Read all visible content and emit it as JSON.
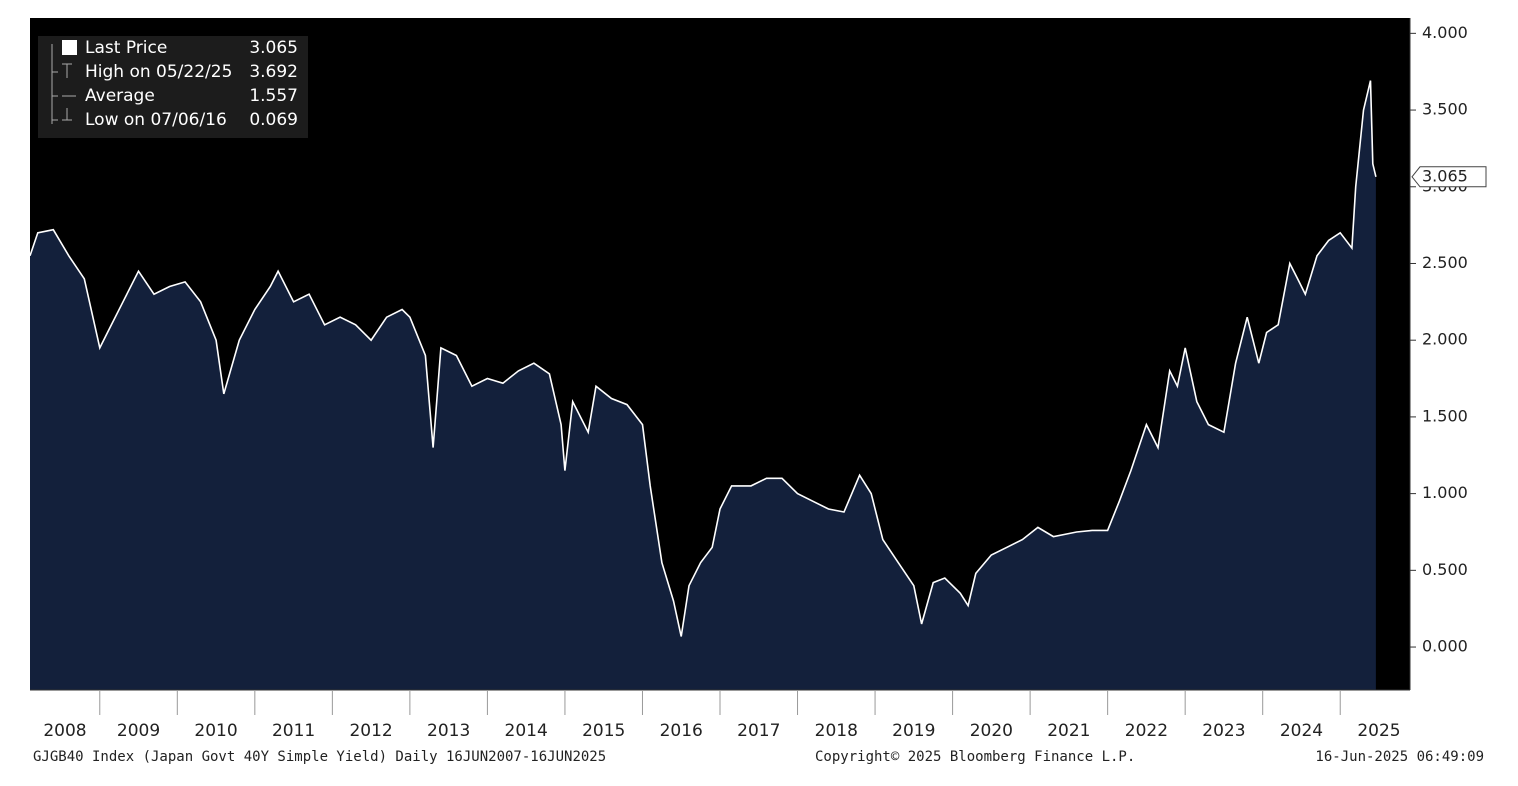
{
  "chart_data": {
    "type": "area",
    "x": [
      2008.1,
      2008.2,
      2008.4,
      2008.6,
      2008.8,
      2009.0,
      2009.1,
      2009.3,
      2009.5,
      2009.7,
      2009.9,
      2010.1,
      2010.3,
      2010.5,
      2010.6,
      2010.8,
      2011.0,
      2011.2,
      2011.3,
      2011.5,
      2011.7,
      2011.9,
      2012.1,
      2012.3,
      2012.5,
      2012.7,
      2012.9,
      2013.0,
      2013.2,
      2013.3,
      2013.4,
      2013.6,
      2013.8,
      2014.0,
      2014.2,
      2014.4,
      2014.6,
      2014.8,
      2014.95,
      2015.0,
      2015.1,
      2015.3,
      2015.4,
      2015.6,
      2015.8,
      2016.0,
      2016.1,
      2016.25,
      2016.4,
      2016.5,
      2016.6,
      2016.75,
      2016.9,
      2017.0,
      2017.15,
      2017.4,
      2017.6,
      2017.8,
      2018.0,
      2018.2,
      2018.4,
      2018.6,
      2018.8,
      2018.95,
      2019.1,
      2019.3,
      2019.5,
      2019.6,
      2019.75,
      2019.9,
      2020.1,
      2020.2,
      2020.3,
      2020.5,
      2020.7,
      2020.9,
      2021.1,
      2021.3,
      2021.6,
      2021.8,
      2022.0,
      2022.15,
      2022.3,
      2022.5,
      2022.65,
      2022.8,
      2022.9,
      2023.0,
      2023.15,
      2023.3,
      2023.5,
      2023.65,
      2023.8,
      2023.95,
      2024.05,
      2024.2,
      2024.35,
      2024.45,
      2024.55,
      2024.7,
      2024.85,
      2025.0,
      2025.15,
      2025.2,
      2025.3,
      2025.39,
      2025.42,
      2025.46
    ],
    "series": [
      {
        "name": "Last Price",
        "color": "#ffffff",
        "fill": "#13203b",
        "values": [
          2.55,
          2.7,
          2.72,
          2.55,
          2.4,
          1.95,
          2.05,
          2.25,
          2.45,
          2.3,
          2.35,
          2.38,
          2.25,
          2.0,
          1.65,
          2.0,
          2.2,
          2.35,
          2.45,
          2.25,
          2.3,
          2.1,
          2.15,
          2.1,
          2.0,
          2.15,
          2.2,
          2.15,
          1.9,
          1.3,
          1.95,
          1.9,
          1.7,
          1.75,
          1.72,
          1.8,
          1.85,
          1.78,
          1.45,
          1.15,
          1.6,
          1.4,
          1.7,
          1.62,
          1.58,
          1.45,
          1.05,
          0.55,
          0.3,
          0.069,
          0.4,
          0.55,
          0.65,
          0.9,
          1.05,
          1.05,
          1.1,
          1.1,
          1.0,
          0.95,
          0.9,
          0.88,
          1.12,
          1.0,
          0.7,
          0.55,
          0.4,
          0.15,
          0.42,
          0.45,
          0.35,
          0.27,
          0.48,
          0.6,
          0.65,
          0.7,
          0.78,
          0.72,
          0.75,
          0.76,
          0.76,
          0.95,
          1.15,
          1.45,
          1.3,
          1.8,
          1.7,
          1.95,
          1.6,
          1.45,
          1.4,
          1.85,
          2.15,
          1.85,
          2.05,
          2.1,
          2.5,
          2.4,
          2.3,
          2.55,
          2.65,
          2.7,
          2.6,
          3.0,
          3.5,
          3.692,
          3.15,
          3.065
        ]
      }
    ],
    "xlim": [
      2008.1,
      2025.9
    ],
    "xticks": [
      2008,
      2009,
      2010,
      2011,
      2012,
      2013,
      2014,
      2015,
      2016,
      2017,
      2018,
      2019,
      2020,
      2021,
      2022,
      2023,
      2024,
      2025
    ],
    "ylim": [
      -0.28,
      4.1
    ],
    "yticks": [
      {
        "value": 0,
        "label": "0.000"
      },
      {
        "value": 0.5,
        "label": "0.500"
      },
      {
        "value": 1,
        "label": "1.000"
      },
      {
        "value": 1.5,
        "label": "1.500"
      },
      {
        "value": 2,
        "label": "2.000"
      },
      {
        "value": 2.5,
        "label": "2.500"
      },
      {
        "value": 3,
        "label": "3.000"
      },
      {
        "value": 3.5,
        "label": "3.500"
      },
      {
        "value": 4,
        "label": "4.000"
      }
    ],
    "legend": [
      {
        "label": "Last Price",
        "value": 3.065
      },
      {
        "label": "High on 05/22/25",
        "value": 3.692
      },
      {
        "label": "Average",
        "value": 1.557
      },
      {
        "label": "Low on 07/06/16",
        "value": 0.069
      }
    ],
    "footer": {
      "left": "GJGB40 Index (Japan Govt 40Y Simple Yield)  Daily 16JUN2007-16JUN2025",
      "center": "Copyright© 2025 Bloomberg Finance L.P.",
      "right": "16-Jun-2025 06:49:09"
    }
  }
}
